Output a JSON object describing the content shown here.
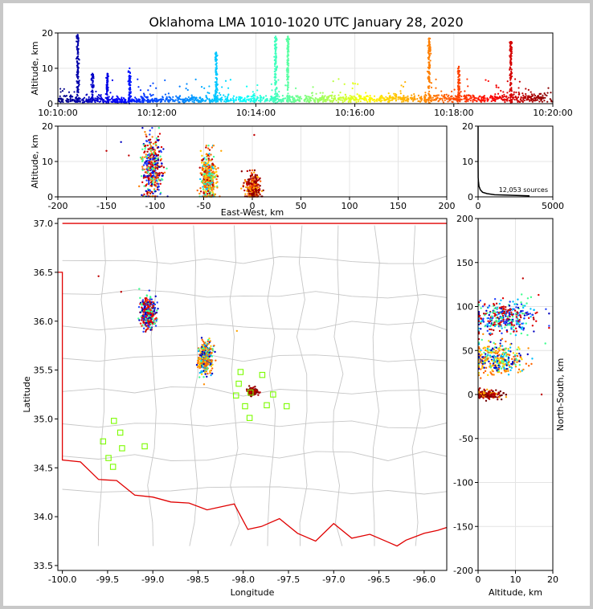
{
  "figure": {
    "title": "Oklahoma LMA 1010-1020 UTC January 28, 2020"
  },
  "chart_data": [
    {
      "type": "scatter",
      "panel": "time-altitude",
      "xlabel": "",
      "ylabel": "Altitude, km",
      "xticklabels": [
        "10:10:00",
        "10:12:00",
        "10:14:00",
        "10:16:00",
        "10:18:00",
        "10:20:00"
      ],
      "x_minutes": [
        0,
        10
      ],
      "ylim": [
        0,
        20
      ],
      "yticks": [
        0,
        10,
        20
      ],
      "colormap": "jet (time)",
      "vertical_bursts": [
        {
          "t_min": 0.4,
          "z_top": 19.5
        },
        {
          "t_min": 0.7,
          "z_top": 8.5
        },
        {
          "t_min": 1.0,
          "z_top": 8.5
        },
        {
          "t_min": 1.45,
          "z_top": 10
        },
        {
          "t_min": 3.2,
          "z_top": 14.5
        },
        {
          "t_min": 4.4,
          "z_top": 19
        },
        {
          "t_min": 4.65,
          "z_top": 19
        },
        {
          "t_min": 7.5,
          "z_top": 18.5
        },
        {
          "t_min": 8.1,
          "z_top": 10.5
        },
        {
          "t_min": 9.15,
          "z_top": 17.5
        }
      ]
    },
    {
      "type": "scatter",
      "panel": "east-west-altitude",
      "xlabel": "East-West, km",
      "ylabel": "Altitude, km",
      "xlim": [
        -200,
        200
      ],
      "xticks": [
        -200,
        -150,
        -100,
        -50,
        0,
        50,
        100,
        150,
        200
      ],
      "ylim": [
        0,
        20
      ],
      "yticks": [
        0,
        10,
        20
      ],
      "clusters": [
        {
          "x": -103,
          "z_top": 19.5,
          "z_mean": 8
        },
        {
          "x": -45,
          "z_top": 14.5,
          "z_mean": 5
        },
        {
          "x": 0,
          "z_top": 7.5,
          "z_mean": 2
        }
      ]
    },
    {
      "type": "line",
      "panel": "altitude-histogram",
      "xlim": [
        0,
        5000
      ],
      "xticks": [
        0,
        5000
      ],
      "ylim": [
        0,
        20
      ],
      "yticks": [
        0,
        10,
        20
      ],
      "annotation": "12,053 sources"
    },
    {
      "type": "scatter",
      "panel": "plan-view",
      "xlabel": "Longitude",
      "ylabel": "Latitude",
      "xlim": [
        -100.05,
        -95.75
      ],
      "xticks": [
        -100.0,
        -99.5,
        -99.0,
        -98.5,
        -98.0,
        -97.5,
        -97.0,
        -96.5,
        -96.0
      ],
      "ylim": [
        33.45,
        37.05
      ],
      "yticks": [
        33.5,
        34.0,
        34.5,
        35.0,
        35.5,
        36.0,
        36.5,
        37.0
      ],
      "stations": [
        {
          "lon": -99.43,
          "lat": 34.98
        },
        {
          "lon": -99.36,
          "lat": 34.86
        },
        {
          "lon": -99.55,
          "lat": 34.77
        },
        {
          "lon": -99.34,
          "lat": 34.7
        },
        {
          "lon": -99.09,
          "lat": 34.72
        },
        {
          "lon": -99.49,
          "lat": 34.6
        },
        {
          "lon": -99.44,
          "lat": 34.51
        },
        {
          "lon": -98.03,
          "lat": 35.48
        },
        {
          "lon": -97.79,
          "lat": 35.45
        },
        {
          "lon": -98.05,
          "lat": 35.36
        },
        {
          "lon": -98.08,
          "lat": 35.24
        },
        {
          "lon": -97.92,
          "lat": 35.27
        },
        {
          "lon": -97.67,
          "lat": 35.25
        },
        {
          "lon": -97.98,
          "lat": 35.13
        },
        {
          "lon": -97.74,
          "lat": 35.14
        },
        {
          "lon": -97.52,
          "lat": 35.13
        },
        {
          "lon": -97.93,
          "lat": 35.01
        }
      ],
      "clusters": [
        {
          "lon": -99.05,
          "lat": 36.08
        },
        {
          "lon": -98.42,
          "lat": 35.62
        },
        {
          "lon": -97.9,
          "lat": 35.28
        }
      ]
    },
    {
      "type": "scatter",
      "panel": "altitude-north-south",
      "xlabel": "Altitude, km",
      "ylabel": "North-South, km",
      "xlim": [
        0,
        20
      ],
      "xticks": [
        0,
        10,
        20
      ],
      "ylim": [
        -200,
        200
      ],
      "yticks": [
        -200,
        -150,
        -100,
        -50,
        0,
        50,
        100,
        150,
        200
      ],
      "clusters": [
        {
          "y": 87,
          "z_top": 19,
          "z_mean": 7
        },
        {
          "y": 40,
          "z_top": 14.5,
          "z_mean": 5
        },
        {
          "y": 0,
          "z_top": 7.5,
          "z_mean": 2
        }
      ]
    }
  ]
}
